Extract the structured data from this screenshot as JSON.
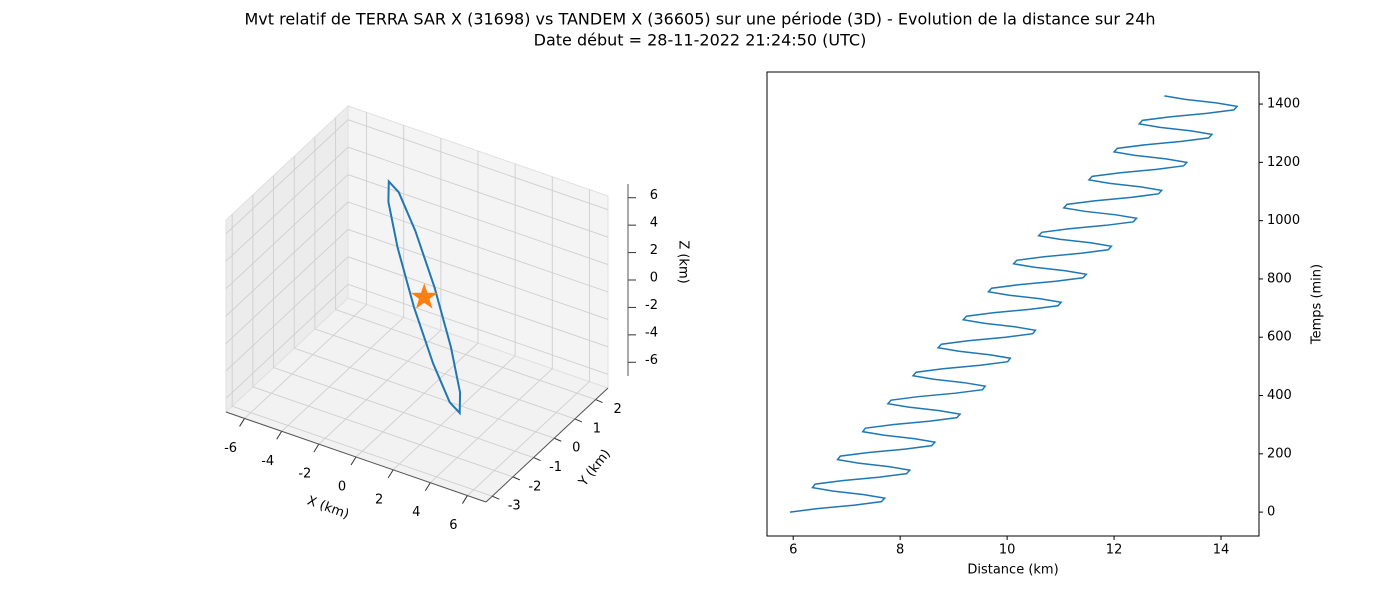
{
  "title": "Mvt relatif de TERRA SAR X (31698) vs TANDEM X (36605) sur une période (3D) - Evolution de la distance sur 24h",
  "subtitle": "Date début = 28-11-2022 21:24:50 (UTC)",
  "chart_data": [
    {
      "type": "line3d",
      "x": [
        0,
        -1.4,
        -2.42,
        -2.8,
        -2.42,
        -1.4,
        0,
        1.4,
        2.42,
        2.8,
        2.42,
        1.4,
        0
      ],
      "y": [
        0.5,
        0.83,
        0.94,
        0.8,
        0.44,
        -0.03,
        -0.5,
        -0.83,
        -0.94,
        -0.8,
        -0.44,
        0.03,
        0.5
      ],
      "z": [
        0,
        3,
        5.2,
        6,
        5.2,
        3,
        0,
        -3,
        -5.2,
        -6,
        -5.2,
        -3,
        0
      ],
      "color": "#1f77b4",
      "marker": {
        "x": 0,
        "y": 0,
        "z": 0,
        "color": "#ff7f0e"
      },
      "xlim": [
        -7,
        7
      ],
      "ylim": [
        -3.3,
        2.6
      ],
      "zlim": [
        -7,
        7
      ],
      "xticks": [
        -6,
        -4,
        -2,
        0,
        2,
        4,
        6
      ],
      "yticks": [
        -3,
        -2,
        -1,
        0,
        1,
        2
      ],
      "zticks": [
        -6,
        -4,
        -2,
        0,
        2,
        4,
        6
      ],
      "xlabel": "X (km)",
      "ylabel": "Y (km)",
      "zlabel": "Z (km)",
      "grid": true
    },
    {
      "type": "line",
      "x": [
        5.94,
        6.45,
        7.15,
        7.65,
        7.71,
        7.32,
        6.75,
        6.36,
        6.41,
        6.92,
        7.62,
        8.12,
        8.18,
        7.79,
        7.22,
        6.83,
        6.88,
        7.39,
        8.09,
        8.59,
        8.65,
        8.26,
        7.69,
        7.3,
        7.35,
        7.86,
        8.56,
        9.06,
        9.12,
        8.73,
        8.16,
        7.77,
        7.83,
        8.33,
        9.03,
        9.54,
        9.59,
        9.2,
        8.63,
        8.24,
        8.3,
        8.8,
        9.5,
        10.01,
        10.06,
        9.67,
        9.1,
        8.71,
        8.77,
        9.27,
        9.97,
        10.48,
        10.53,
        10.14,
        9.57,
        9.18,
        9.24,
        9.74,
        10.44,
        10.95,
        11.01,
        10.62,
        10.04,
        9.65,
        9.71,
        10.21,
        10.91,
        11.42,
        11.48,
        11.09,
        10.51,
        10.12,
        10.18,
        10.69,
        11.38,
        11.89,
        11.95,
        11.56,
        10.98,
        10.59,
        10.65,
        11.16,
        11.85,
        12.36,
        12.42,
        12.03,
        11.45,
        11.06,
        11.12,
        11.63,
        12.32,
        12.83,
        12.89,
        12.5,
        11.92,
        11.53,
        11.59,
        12.1,
        12.79,
        13.3,
        13.36,
        12.97,
        12.39,
        12.0,
        12.06,
        12.57,
        13.26,
        13.77,
        13.83,
        13.44,
        12.86,
        12.47,
        12.53,
        13.04,
        13.73,
        14.24,
        14.3,
        13.91,
        13.33,
        12.94
      ],
      "series": [
        {
          "color": "#1f77b4",
          "values": [
            0,
            12,
            24,
            36,
            48,
            60,
            72,
            84,
            96,
            108,
            120,
            132,
            144,
            156,
            168,
            180,
            192,
            204,
            216,
            228,
            240,
            252,
            264,
            276,
            288,
            300,
            312,
            324,
            336,
            348,
            360,
            372,
            384,
            396,
            408,
            420,
            432,
            444,
            456,
            468,
            480,
            492,
            504,
            516,
            528,
            540,
            552,
            564,
            576,
            588,
            600,
            612,
            624,
            636,
            648,
            660,
            672,
            684,
            696,
            708,
            720,
            732,
            744,
            756,
            768,
            780,
            792,
            804,
            816,
            828,
            840,
            852,
            864,
            876,
            888,
            900,
            912,
            924,
            936,
            948,
            960,
            972,
            984,
            996,
            1008,
            1020,
            1032,
            1044,
            1056,
            1068,
            1080,
            1092,
            1104,
            1116,
            1128,
            1140,
            1152,
            1164,
            1176,
            1188,
            1200,
            1212,
            1224,
            1236,
            1248,
            1260,
            1272,
            1284,
            1296,
            1308,
            1320,
            1332,
            1344,
            1356,
            1368,
            1380,
            1392,
            1404,
            1416,
            1428
          ]
        }
      ],
      "xlim": [
        5.51,
        14.71
      ],
      "ylim": [
        -82,
        1510
      ],
      "xticks": [
        6,
        8,
        10,
        12,
        14
      ],
      "yticks": [
        0,
        200,
        400,
        600,
        800,
        1000,
        1200,
        1400
      ],
      "xlabel": "Distance (km)",
      "ylabel": "Temps (min)",
      "yaxis_side": "right",
      "grid": false
    }
  ]
}
